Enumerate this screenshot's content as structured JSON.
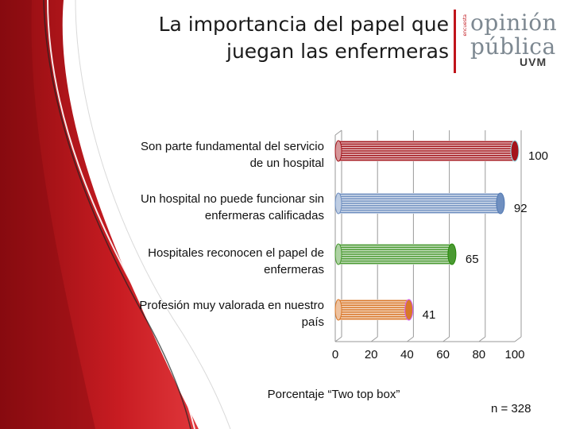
{
  "header": {
    "title_line1": "La importancia del papel que",
    "title_line2": "juegan las enfermeras"
  },
  "logo": {
    "tiny_text": "encuesta",
    "word1": "opinión",
    "word2": "pública",
    "word3": "UVM",
    "accent_color": "#c0141b"
  },
  "chart_data": {
    "type": "bar",
    "orientation": "horizontal",
    "categories": [
      "Son parte fundamental del servicio de un hospital",
      "Un hospital no puede funcionar sin enfermeras calificadas",
      "Hospitales reconocen el papel de enfermeras",
      "Profesión muy valorada en nuestro país"
    ],
    "category_lines": [
      [
        "Son parte fundamental del servicio",
        "de un hospital"
      ],
      [
        "Un hospital no puede funcionar sin",
        "enfermeras calificadas"
      ],
      [
        "Hospitales reconocen el papel de",
        "enfermeras"
      ],
      [
        "Profesión muy valorada en nuestro",
        "país"
      ]
    ],
    "values": [
      100,
      92,
      65,
      41
    ],
    "value_labels": [
      "100",
      "92",
      "65",
      "41"
    ],
    "bar_colors": [
      "#a4161d",
      "#6f8fc0",
      "#4a9a32",
      "#d9782a"
    ],
    "xlim": [
      0,
      100
    ],
    "xticks": [
      0,
      20,
      40,
      60,
      80,
      100
    ],
    "xlabel": "Porcentaje “Two top box”",
    "grid": true,
    "note": "n = 328"
  }
}
